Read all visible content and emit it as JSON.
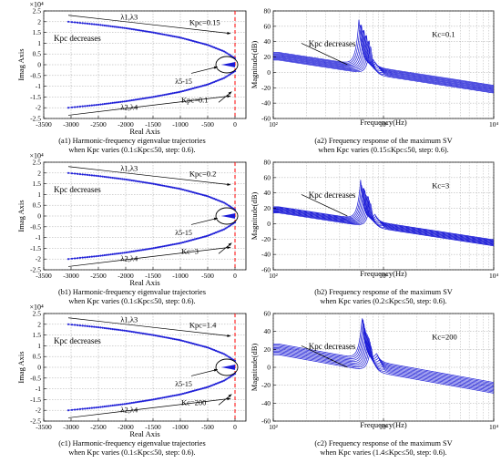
{
  "colors": {
    "trace": "#1a1ad6",
    "marker": "#2b2bd9",
    "refline": "#ff0000",
    "axis": "#000000",
    "grid": "#808080"
  },
  "chart_data": [
    {
      "id": "a1",
      "type": "scatter",
      "title_lines": [
        "(a1) Harmonic-frequency eigenvalue trajectories",
        "when Kpc varies (0.1≤Kpc≤50, step: 0.6)."
      ],
      "xlabel": "Real Axis",
      "ylabel": "Imag Axis",
      "exponent_label": "×10⁴",
      "xlim": [
        -3500,
        200
      ],
      "ylim": [
        -2.5,
        2.5
      ],
      "xticks": [
        -3500,
        -3000,
        -2500,
        -2000,
        -1500,
        -1000,
        -500,
        0
      ],
      "yticks": [
        -2.5,
        -2,
        -1.5,
        -1,
        -0.5,
        0,
        0.5,
        1,
        1.5,
        2,
        2.5
      ],
      "grid": true,
      "vline_x": 0,
      "branches": [
        {
          "name": "λ1,λ3",
          "x": [
            -3050,
            -2500,
            -2000,
            -1500,
            -1000,
            -500,
            -200,
            0
          ],
          "y": [
            2.0,
            1.86,
            1.7,
            1.5,
            1.26,
            0.92,
            0.62,
            0.3
          ]
        },
        {
          "name": "λ2,λ4",
          "x": [
            -3050,
            -2500,
            -2000,
            -1500,
            -1000,
            -500,
            -200,
            0
          ],
          "y": [
            -2.0,
            -1.86,
            -1.7,
            -1.5,
            -1.26,
            -0.92,
            -0.62,
            -0.3
          ]
        }
      ],
      "annotations": [
        {
          "text": "×10⁴"
        },
        {
          "text": "λ1,λ3"
        },
        {
          "text": "Kpc=0.15"
        },
        {
          "text": "Kpc decreases"
        },
        {
          "text": "λ5-15"
        },
        {
          "text": "λ2,λ4"
        },
        {
          "text": "Kpc=0.1"
        }
      ]
    },
    {
      "id": "a2",
      "type": "line",
      "title_lines": [
        "(a2) Frequency response of the maximum SV",
        "when Kpc varies (0.15≤Kpc≤50, step: 0.6)."
      ],
      "xlabel": "Frequency(Hz)",
      "ylabel": "Magnitude(dB)",
      "xscale": "log",
      "xlim": [
        100,
        10000
      ],
      "ylim": [
        -60,
        80
      ],
      "yticks": [
        -60,
        -40,
        -20,
        0,
        20,
        40,
        60,
        80
      ],
      "xticks": [
        100,
        1000,
        10000
      ],
      "xtick_labels": [
        "10²",
        "10³",
        "10⁴"
      ],
      "grid": true,
      "curve_model": {
        "n": 10,
        "dc_db": [
          26,
          16
        ],
        "slope_db_per_decade": -40,
        "peak_hz": [
          600,
          760
        ],
        "peak_db": [
          71,
          38
        ]
      },
      "annotations": [
        {
          "text": "Kpc decreases"
        },
        {
          "text": "Kc=0.1"
        }
      ]
    },
    {
      "id": "b1",
      "type": "scatter",
      "title_lines": [
        "(b1) Harmonic-frequency eigenvalue trajectories",
        "when Kpc varies (0.1≤Kpc≤50, step: 0.6)."
      ],
      "xlabel": "Real Axis",
      "ylabel": "Imag Axis",
      "exponent_label": "×10⁴",
      "xlim": [
        -3500,
        200
      ],
      "ylim": [
        -2.5,
        2.5
      ],
      "xticks": [
        -3500,
        -3000,
        -2500,
        -2000,
        -1500,
        -1000,
        -500,
        0
      ],
      "yticks": [
        -2.5,
        -2,
        -1.5,
        -1,
        -0.5,
        0,
        0.5,
        1,
        1.5,
        2,
        2.5
      ],
      "grid": true,
      "vline_x": 0,
      "branches": [
        {
          "name": "λ1,λ3",
          "x": [
            -3050,
            -2500,
            -2000,
            -1500,
            -1000,
            -500,
            -200,
            0
          ],
          "y": [
            2.0,
            1.86,
            1.7,
            1.5,
            1.26,
            0.92,
            0.62,
            0.3
          ]
        },
        {
          "name": "λ2,λ4",
          "x": [
            -3050,
            -2500,
            -2000,
            -1500,
            -1000,
            -500,
            -200,
            0
          ],
          "y": [
            -2.0,
            -1.86,
            -1.7,
            -1.5,
            -1.26,
            -0.92,
            -0.62,
            -0.3
          ]
        }
      ],
      "annotations": [
        {
          "text": "×10⁴"
        },
        {
          "text": "λ1,λ3"
        },
        {
          "text": "Kpc=0.2"
        },
        {
          "text": "Kpc decreases"
        },
        {
          "text": "λ5-15"
        },
        {
          "text": "λ2,λ4"
        },
        {
          "text": "Kc=3"
        }
      ]
    },
    {
      "id": "b2",
      "type": "line",
      "title_lines": [
        "(b2) Frequency response of the maximum SV",
        "when Kpc varies (0.2≤Kpc≤50, step: 0.6)."
      ],
      "xlabel": "Frequency(Hz)",
      "ylabel": "Magnitude(dB)",
      "xscale": "log",
      "xlim": [
        100,
        10000
      ],
      "ylim": [
        -60,
        80
      ],
      "yticks": [
        -60,
        -40,
        -20,
        0,
        20,
        40,
        60,
        80
      ],
      "xticks": [
        100,
        1000,
        10000
      ],
      "xtick_labels": [
        "10²",
        "10³",
        "10⁴"
      ],
      "grid": true,
      "curve_model": {
        "n": 10,
        "dc_db": [
          22,
          14
        ],
        "slope_db_per_decade": -40,
        "peak_hz": [
          620,
          760
        ],
        "peak_db": [
          57,
          30
        ]
      },
      "annotations": [
        {
          "text": "Kpc decreases"
        },
        {
          "text": "Kc=3"
        }
      ]
    },
    {
      "id": "c1",
      "type": "scatter",
      "title_lines": [
        "(c1) Harmonic-frequency eigenvalue trajectories",
        "when Kpc varies (0.1≤Kpc≤50, step: 0.6)."
      ],
      "xlabel": "Real Axis",
      "ylabel": "Imag Axis",
      "exponent_label": "×10⁴",
      "xlim": [
        -3500,
        200
      ],
      "ylim": [
        -2.5,
        2.5
      ],
      "xticks": [
        -3500,
        -3000,
        -2500,
        -2000,
        -1500,
        -1000,
        -500,
        0
      ],
      "yticks": [
        -2.5,
        -2,
        -1.5,
        -1,
        -0.5,
        0,
        0.5,
        1,
        1.5,
        2,
        2.5
      ],
      "grid": true,
      "vline_x": 0,
      "branches": [
        {
          "name": "λ1,λ3",
          "x": [
            -3050,
            -2500,
            -2000,
            -1500,
            -1000,
            -500,
            -200,
            0
          ],
          "y": [
            2.0,
            1.86,
            1.7,
            1.5,
            1.26,
            0.92,
            0.62,
            0.3
          ]
        },
        {
          "name": "λ2,λ4",
          "x": [
            -3050,
            -2500,
            -2000,
            -1500,
            -1000,
            -500,
            -200,
            0
          ],
          "y": [
            -2.0,
            -1.86,
            -1.7,
            -1.5,
            -1.26,
            -0.92,
            -0.62,
            -0.3
          ]
        }
      ],
      "annotations": [
        {
          "text": "×10⁴"
        },
        {
          "text": "λ1,λ3"
        },
        {
          "text": "Kpc=1.4"
        },
        {
          "text": "Kpc decreases"
        },
        {
          "text": "λ5-15"
        },
        {
          "text": "λ2,λ4"
        },
        {
          "text": "Kc=200"
        }
      ]
    },
    {
      "id": "c2",
      "type": "line",
      "title_lines": [
        "(c2) Frequency response of the maximum SV",
        "when Kpc varies (1.4≤Kpc≤50, step: 0.6)."
      ],
      "xlabel": "Frequency(Hz)",
      "ylabel": "Magnitude(dB)",
      "xscale": "log",
      "xlim": [
        100,
        10000
      ],
      "ylim": [
        -60,
        60
      ],
      "yticks": [
        -60,
        -40,
        -20,
        0,
        20,
        40,
        60
      ],
      "xticks": [
        100,
        1000,
        10000
      ],
      "xtick_labels": [
        "10²",
        "10³",
        "10⁴"
      ],
      "grid": true,
      "curve_model": {
        "n": 10,
        "dc_db": [
          26,
          14
        ],
        "slope_db_per_decade": -40,
        "peak_hz": [
          640,
          770
        ],
        "peak_db": [
          57,
          26
        ]
      },
      "annotations": [
        {
          "text": "Kpc decreases"
        },
        {
          "text": "Kc=200"
        }
      ]
    }
  ]
}
